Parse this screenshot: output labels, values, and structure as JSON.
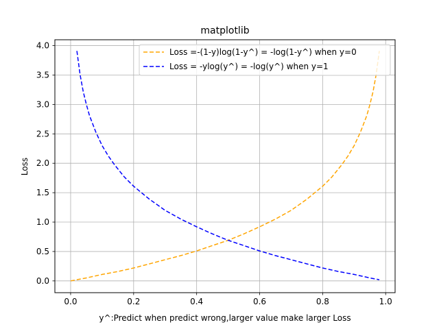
{
  "chart_data": {
    "type": "line",
    "title": "matplotlib",
    "xlabel": "y^:Predict when predict wrong,larger value make larger Loss",
    "ylabel": "Loss",
    "xlim": [
      -0.05,
      1.03
    ],
    "ylim": [
      -0.2,
      4.1
    ],
    "x_ticks": [
      0.0,
      0.2,
      0.4,
      0.6,
      0.8,
      1.0
    ],
    "x_tick_labels": [
      "0.0",
      "0.2",
      "0.4",
      "0.6",
      "0.8",
      "1.0"
    ],
    "y_ticks": [
      0.0,
      0.5,
      1.0,
      1.5,
      2.0,
      2.5,
      3.0,
      3.5,
      4.0
    ],
    "y_tick_labels": [
      "0.0",
      "0.5",
      "1.0",
      "1.5",
      "2.0",
      "2.5",
      "3.0",
      "3.5",
      "4.0"
    ],
    "grid": true,
    "legend_position": "top-right",
    "series": [
      {
        "name": "Loss =-(1-y)log(1-y^) = -log(1-y^) when y=0",
        "color": "#ffa500",
        "style": "dashed",
        "x": [
          0.0,
          0.05,
          0.1,
          0.15,
          0.2,
          0.25,
          0.3,
          0.35,
          0.4,
          0.45,
          0.5,
          0.55,
          0.6,
          0.65,
          0.7,
          0.75,
          0.8,
          0.83,
          0.86,
          0.88,
          0.9,
          0.92,
          0.94,
          0.95,
          0.96,
          0.97,
          0.98
        ],
        "y": [
          0.0,
          0.05,
          0.11,
          0.16,
          0.22,
          0.29,
          0.36,
          0.43,
          0.51,
          0.6,
          0.69,
          0.8,
          0.92,
          1.05,
          1.2,
          1.39,
          1.61,
          1.77,
          1.97,
          2.12,
          2.3,
          2.53,
          2.81,
          3.0,
          3.22,
          3.51,
          3.91
        ]
      },
      {
        "name": "Loss = -ylog(y^) = -log(y^) when y=1",
        "color": "#0000ff",
        "style": "dashed",
        "x": [
          0.02,
          0.03,
          0.04,
          0.05,
          0.06,
          0.08,
          0.1,
          0.12,
          0.14,
          0.17,
          0.2,
          0.25,
          0.3,
          0.35,
          0.4,
          0.45,
          0.5,
          0.55,
          0.6,
          0.65,
          0.7,
          0.75,
          0.8,
          0.85,
          0.9,
          0.95,
          0.98
        ],
        "y": [
          3.91,
          3.51,
          3.22,
          3.0,
          2.81,
          2.53,
          2.3,
          2.12,
          1.97,
          1.77,
          1.61,
          1.39,
          1.2,
          1.05,
          0.92,
          0.8,
          0.69,
          0.6,
          0.51,
          0.43,
          0.36,
          0.29,
          0.22,
          0.16,
          0.11,
          0.05,
          0.02
        ]
      }
    ]
  }
}
